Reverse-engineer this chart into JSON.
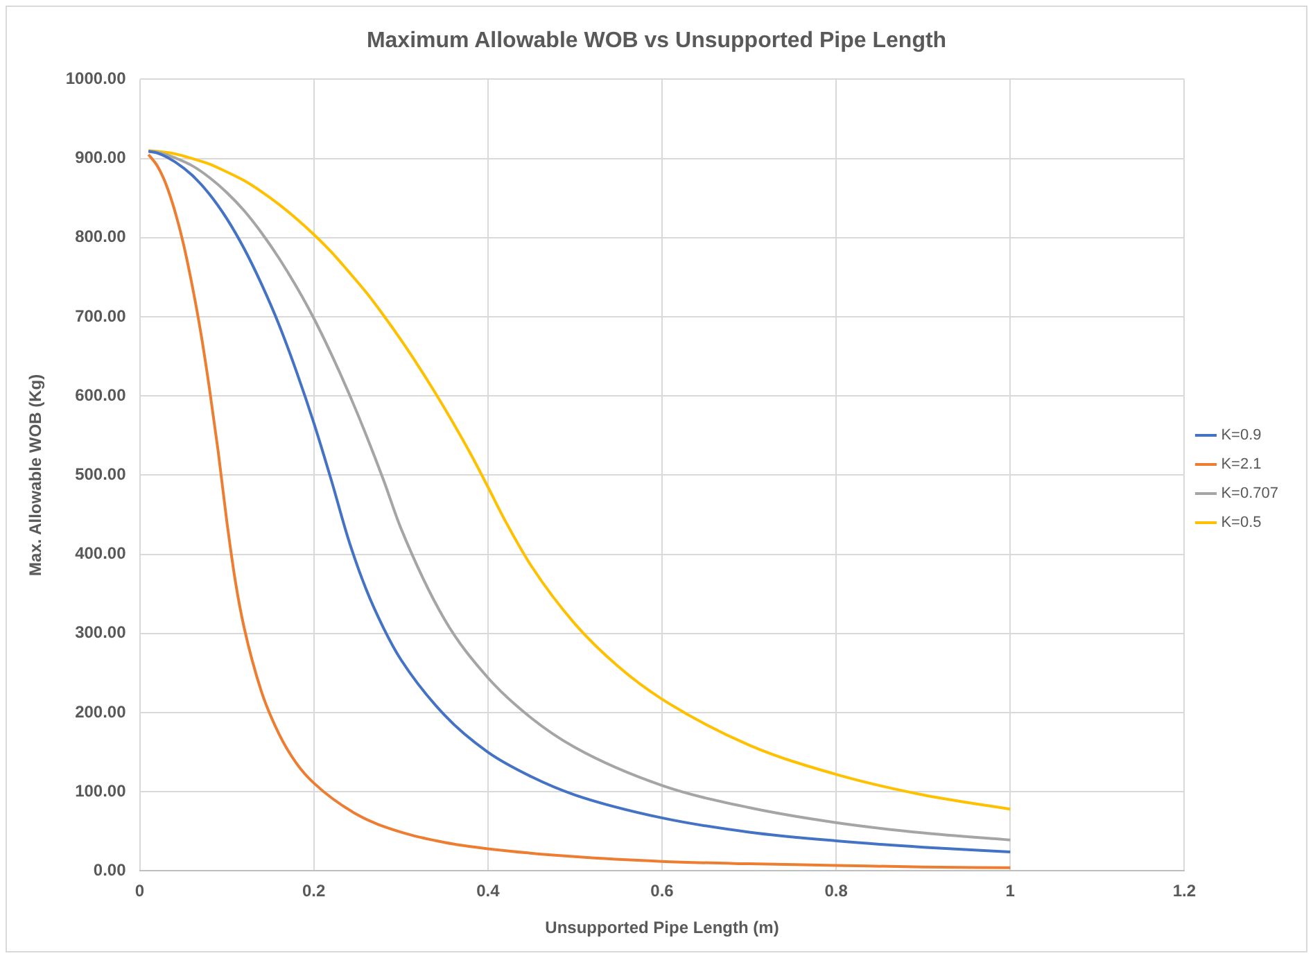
{
  "chart_data": {
    "type": "line",
    "title": "Maximum Allowable WOB vs Unsupported Pipe Length",
    "xlabel": "Unsupported Pipe Length (m)",
    "ylabel": "Max. Allowable WOB (Kg)",
    "xlim": [
      0,
      1.2
    ],
    "xticks": [
      0,
      0.2,
      0.4,
      0.6,
      0.8,
      1,
      1.2
    ],
    "ylim": [
      0,
      1000
    ],
    "yticks": [
      {
        "value": 0,
        "label": "0.00"
      },
      {
        "value": 100,
        "label": "100.00"
      },
      {
        "value": 200,
        "label": "200.00"
      },
      {
        "value": 300,
        "label": "300.00"
      },
      {
        "value": 400,
        "label": "400.00"
      },
      {
        "value": 500,
        "label": "500.00"
      },
      {
        "value": 600,
        "label": "600.00"
      },
      {
        "value": 700,
        "label": "700.00"
      },
      {
        "value": 800,
        "label": "800.00"
      },
      {
        "value": 900,
        "label": "900.00"
      },
      {
        "value": 1000,
        "label": "1000.00"
      }
    ],
    "grid": true,
    "legend": "right",
    "marker": "none",
    "line_style": "solid",
    "series": [
      {
        "name": "K=0.9",
        "color": "#4472c4",
        "x": [
          0.01,
          0.02,
          0.04,
          0.06,
          0.08,
          0.1,
          0.12,
          0.14,
          0.16,
          0.18,
          0.2,
          0.22,
          0.24,
          0.26,
          0.28,
          0.3,
          0.35,
          0.4,
          0.45,
          0.5,
          0.6,
          0.7,
          0.8,
          0.9,
          1.0
        ],
        "values": [
          909,
          907,
          896,
          879,
          855,
          824,
          786,
          741,
          690,
          631,
          566,
          494,
          418,
          356,
          307,
          267,
          197,
          150,
          119,
          96,
          67,
          49,
          38,
          30,
          24
        ]
      },
      {
        "name": "K=2.1",
        "color": "#ed7d31",
        "x": [
          0.01,
          0.02,
          0.03,
          0.04,
          0.05,
          0.06,
          0.07,
          0.08,
          0.09,
          0.1,
          0.11,
          0.12,
          0.14,
          0.16,
          0.18,
          0.2,
          0.25,
          0.3,
          0.35,
          0.4,
          0.5,
          0.6,
          0.7,
          0.8,
          0.9,
          1.0
        ],
        "values": [
          905,
          891,
          868,
          835,
          793,
          741,
          681,
          610,
          531,
          442,
          365,
          307,
          226,
          173,
          136,
          111,
          71,
          49,
          36,
          28,
          18,
          12,
          9,
          7,
          5,
          4
        ]
      },
      {
        "name": "K=0.707",
        "color": "#a5a5a5",
        "x": [
          0.01,
          0.02,
          0.04,
          0.06,
          0.08,
          0.1,
          0.12,
          0.14,
          0.16,
          0.18,
          0.2,
          0.22,
          0.24,
          0.26,
          0.28,
          0.3,
          0.35,
          0.4,
          0.45,
          0.5,
          0.6,
          0.7,
          0.8,
          0.9,
          1.0
        ],
        "values": [
          909,
          908,
          901,
          891,
          876,
          857,
          834,
          806,
          774,
          738,
          698,
          653,
          604,
          551,
          494,
          433,
          318,
          244,
          193,
          156,
          108,
          80,
          61,
          48,
          39
        ]
      },
      {
        "name": "K=0.5",
        "color": "#ffc000",
        "x": [
          0.01,
          0.02,
          0.04,
          0.06,
          0.08,
          0.1,
          0.12,
          0.14,
          0.16,
          0.18,
          0.2,
          0.22,
          0.24,
          0.26,
          0.28,
          0.3,
          0.32,
          0.34,
          0.36,
          0.38,
          0.4,
          0.42,
          0.45,
          0.5,
          0.55,
          0.6,
          0.7,
          0.8,
          0.9,
          1.0
        ],
        "values": [
          910,
          909,
          906,
          900,
          893,
          883,
          872,
          858,
          842,
          824,
          804,
          782,
          757,
          731,
          702,
          671,
          638,
          603,
          566,
          527,
          485,
          442,
          385,
          312,
          258,
          217,
          159,
          122,
          96,
          78
        ]
      }
    ]
  }
}
